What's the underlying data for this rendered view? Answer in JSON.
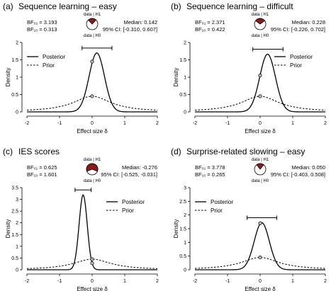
{
  "chart_data": [
    {
      "type": "line",
      "panel_label": "(a)",
      "title": "Sequence learning – easy",
      "xlabel": "Effect size δ",
      "ylabel": "Density",
      "xlim": [
        -2,
        2
      ],
      "ylim": [
        0,
        2
      ],
      "xticks": [
        "-2",
        "-1",
        "0",
        "1",
        "2"
      ],
      "yticks": [
        "0",
        "0.5",
        "1",
        "1.5",
        "2"
      ],
      "bf01": "BF₀₁ = 3.193",
      "bf10": "BF₁₀ = 0.313",
      "median": "Median: 0.142",
      "ci": "95% CI: [-0.310, 0.607]",
      "ci_interval": [
        -0.31,
        0.607
      ],
      "pie_labels": [
        "data | H1",
        "data | H0"
      ],
      "pie_h1_fraction": 0.24,
      "legend": [
        "Posterior",
        "Prior"
      ],
      "legend_position": "top-left",
      "posterior_mean": 0.142,
      "posterior_sd": 0.235,
      "prior_scale": 0.707,
      "prior_density_at_0": 0.45,
      "posterior_density_at_0": 1.45
    },
    {
      "type": "line",
      "panel_label": "(b)",
      "title": "Sequence learning – difficult",
      "xlabel": "Effect size δ",
      "ylabel": "Density",
      "xlim": [
        -2,
        2
      ],
      "ylim": [
        0,
        2
      ],
      "xticks": [
        "-2",
        "-1",
        "0",
        "1",
        "2"
      ],
      "yticks": [
        "0",
        "0.5",
        "1",
        "1.5",
        "2"
      ],
      "bf01": "BF₀₁ = 2.371",
      "bf10": "BF₁₀ = 0.422",
      "median": "Median: 0.228",
      "ci": "95% CI: [-0.226, 0.702]",
      "ci_interval": [
        -0.226,
        0.702
      ],
      "pie_labels": [
        "data | H1",
        "data | H0"
      ],
      "pie_h1_fraction": 0.3,
      "legend": [
        "Posterior",
        "Prior"
      ],
      "legend_position": "top-right",
      "posterior_mean": 0.228,
      "posterior_sd": 0.24,
      "prior_scale": 0.707,
      "prior_density_at_0": 0.45,
      "posterior_density_at_0": 1.05
    },
    {
      "type": "line",
      "panel_label": "(c)",
      "title": "IES scores",
      "xlabel": "Effect size δ",
      "ylabel": "Density",
      "xlim": [
        -2,
        2
      ],
      "ylim": [
        0,
        3.5
      ],
      "xticks": [
        "-2",
        "-1",
        "0",
        "1",
        "2"
      ],
      "yticks": [
        "0",
        "0.5",
        "1",
        "1.5",
        "2",
        "2.5",
        "3",
        "3.5"
      ],
      "bf01": "BF₀₁ = 0.625",
      "bf10": "BF₁₀ = 1.601",
      "median": "Median: -0.276",
      "ci": "95% CI: [-0.525, -0.031]",
      "ci_interval": [
        -0.525,
        -0.031
      ],
      "pie_labels": [
        "data | H1",
        "data | H0"
      ],
      "pie_h1_fraction": 0.62,
      "legend": [
        "Posterior",
        "Prior"
      ],
      "legend_position": "top-right",
      "posterior_mean": -0.276,
      "posterior_sd": 0.125,
      "prior_scale": 0.707,
      "prior_density_at_0": 0.45,
      "posterior_density_at_0": 0.28
    },
    {
      "type": "line",
      "panel_label": "(d)",
      "title": "Surprise-related slowing – easy",
      "xlabel": "Effect size δ",
      "ylabel": "Density",
      "xlim": [
        -2,
        2
      ],
      "ylim": [
        0,
        3
      ],
      "xticks": [
        "-2",
        "-1",
        "0",
        "1",
        "2"
      ],
      "yticks": [
        "0",
        "0.5",
        "1",
        "1.5",
        "2",
        "2.5",
        "3"
      ],
      "bf01": "BF₀₁ = 3.778",
      "bf10": "BF₁₀ = 0.265",
      "median": "Median: 0.050",
      "ci": "95% CI: [-0.403, 0.508]",
      "ci_interval": [
        -0.403,
        0.508
      ],
      "pie_labels": [
        "data | H1",
        "data | H0"
      ],
      "pie_h1_fraction": 0.21,
      "legend": [
        "Posterior",
        "Prior"
      ],
      "legend_position": "top-left",
      "posterior_mean": 0.05,
      "posterior_sd": 0.232,
      "prior_scale": 0.707,
      "prior_density_at_0": 0.45,
      "posterior_density_at_0": 1.7
    }
  ]
}
